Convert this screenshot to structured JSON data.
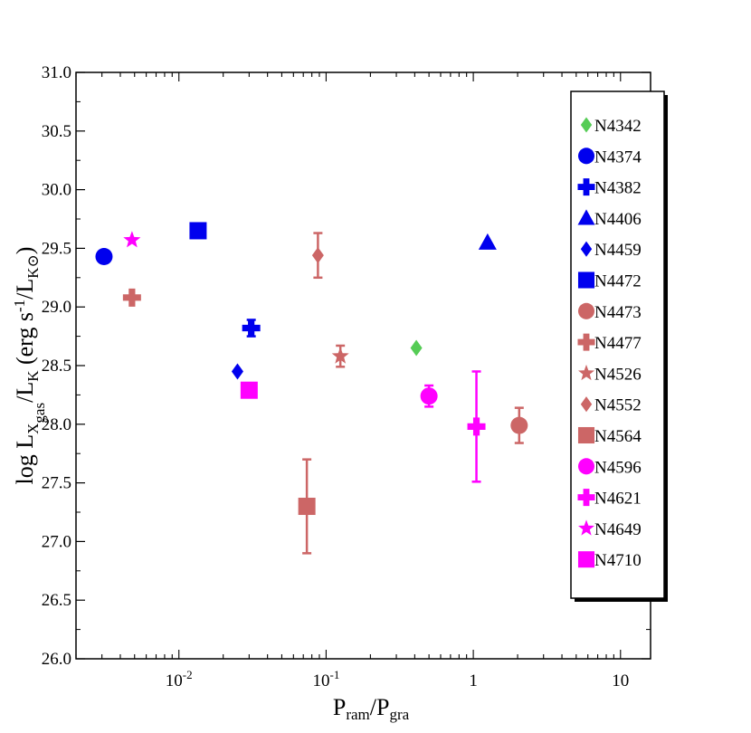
{
  "chart_data": {
    "type": "scatter",
    "title": "",
    "xlabel": {
      "main": "P",
      "sub1": "ram",
      "sep": "/P",
      "sub2": "gra"
    },
    "ylabel": {
      "prefix": "log L",
      "sub_x": "X",
      "sub_gas": "gas",
      "mid": "/L",
      "sub_k": "K",
      "unit_open": " (erg s",
      "exp": "-1",
      "unit_mid": "/L",
      "sub_ksun": "K",
      "sun": "⊙",
      "unit_close": ")"
    },
    "xscale": "log",
    "xlim": [
      0.002,
      16
    ],
    "ylim": [
      26.0,
      31.0
    ],
    "x_ticks": [
      {
        "value": 0.01,
        "label_base": "10",
        "label_exp": "-2"
      },
      {
        "value": 0.1,
        "label_base": "10",
        "label_exp": "-1"
      },
      {
        "value": 1,
        "label_base": "1",
        "label_exp": ""
      },
      {
        "value": 10,
        "label_base": "10",
        "label_exp": ""
      }
    ],
    "y_ticks": [
      "26.0",
      "26.5",
      "27.0",
      "27.5",
      "28.0",
      "28.5",
      "29.0",
      "29.5",
      "30.0",
      "30.5",
      "31.0"
    ],
    "legend_position": "right",
    "series": [
      {
        "name": "N4342",
        "marker": "diamond",
        "color": "#55cc55",
        "x": 0.41,
        "y": 28.65,
        "err": 0
      },
      {
        "name": "N4374",
        "marker": "circle",
        "color": "#0000ee",
        "x": 0.0031,
        "y": 29.43,
        "err": 0
      },
      {
        "name": "N4382",
        "marker": "plus",
        "color": "#0000ee",
        "x": 0.031,
        "y": 28.82,
        "err": 0.07
      },
      {
        "name": "N4406",
        "marker": "triangle",
        "color": "#0000ee",
        "x": 1.25,
        "y": 29.55,
        "err": 0
      },
      {
        "name": "N4459",
        "marker": "diamond",
        "color": "#0000ee",
        "x": 0.025,
        "y": 28.45,
        "err": 0
      },
      {
        "name": "N4472",
        "marker": "square",
        "color": "#0000ee",
        "x": 0.0135,
        "y": 29.65,
        "err": 0
      },
      {
        "name": "N4473",
        "marker": "circle",
        "color": "#cc6666",
        "x": 2.05,
        "y": 27.99,
        "err": 0.15
      },
      {
        "name": "N4477",
        "marker": "plus",
        "color": "#cc6666",
        "x": 0.0048,
        "y": 29.08,
        "err": 0
      },
      {
        "name": "N4526",
        "marker": "star",
        "color": "#cc6666",
        "x": 0.125,
        "y": 28.58,
        "err": 0.09
      },
      {
        "name": "N4552",
        "marker": "diamond",
        "color": "#cc6666",
        "x": 0.088,
        "y": 29.44,
        "err": 0.19
      },
      {
        "name": "N4564",
        "marker": "square",
        "color": "#cc6666",
        "x": 0.074,
        "y": 27.3,
        "err": 0.4
      },
      {
        "name": "N4596",
        "marker": "circle",
        "color": "#ff00ff",
        "x": 0.5,
        "y": 28.24,
        "err": 0.09
      },
      {
        "name": "N4621",
        "marker": "plus",
        "color": "#ff00ff",
        "x": 1.05,
        "y": 27.98,
        "err": 0.47
      },
      {
        "name": "N4649",
        "marker": "star",
        "color": "#ff00ff",
        "x": 0.0048,
        "y": 29.57,
        "err": 0
      },
      {
        "name": "N4710",
        "marker": "square",
        "color": "#ff00ff",
        "x": 0.03,
        "y": 28.29,
        "err": 0.05
      }
    ]
  }
}
